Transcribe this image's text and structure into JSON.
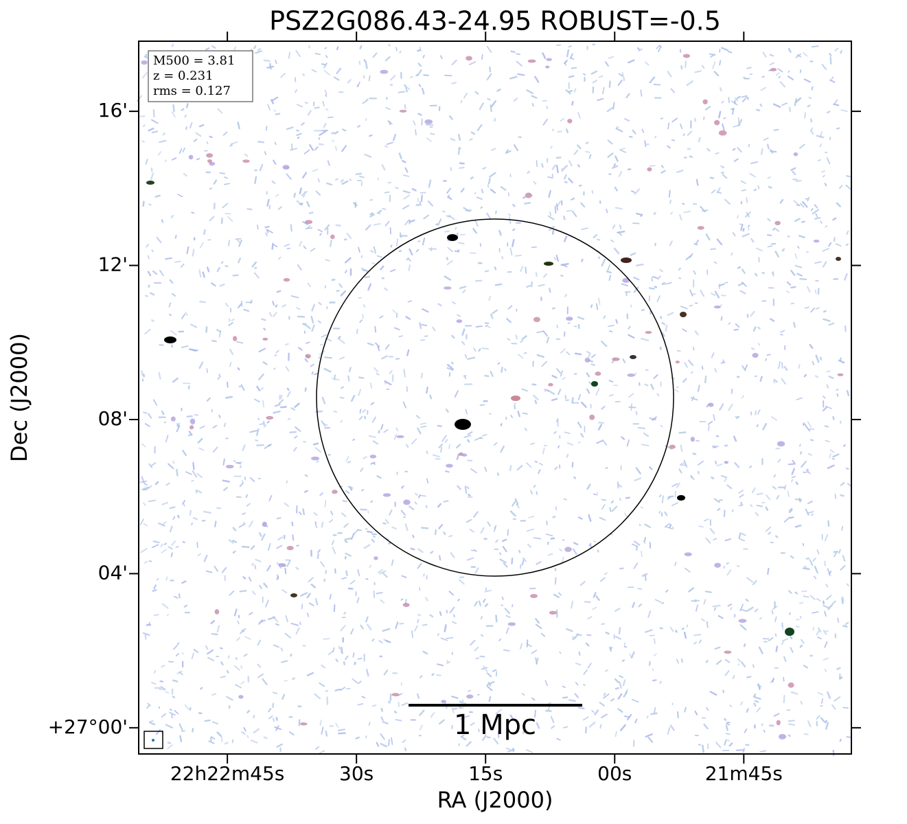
{
  "chart_data": {
    "type": "image",
    "title": "PSZ2G086.43-24.95 ROBUST=-0.5",
    "x_label": "RA (J2000)",
    "y_label": "Dec (J2000)",
    "xlim": [
      80575.3,
      80492.5
    ],
    "ylim": [
      -0.68,
      17.82
    ],
    "xticks": [
      {
        "value": 80565,
        "label": "22h22m45s"
      },
      {
        "value": 80550,
        "label": "30s"
      },
      {
        "value": 80535,
        "label": "15s"
      },
      {
        "value": 80520,
        "label": "00s"
      },
      {
        "value": 80505,
        "label": "21m45s"
      }
    ],
    "yticks": [
      {
        "value": 0,
        "label": "+27°00'"
      },
      {
        "value": 4,
        "label": "04'"
      },
      {
        "value": 8,
        "label": "08'"
      },
      {
        "value": 12,
        "label": "12'"
      },
      {
        "value": 16,
        "label": "16'"
      }
    ],
    "info": [
      "M500 = 3.81",
      "z = 0.231",
      "rms = 0.127"
    ],
    "scale_bar_label": "1 Mpc"
  }
}
